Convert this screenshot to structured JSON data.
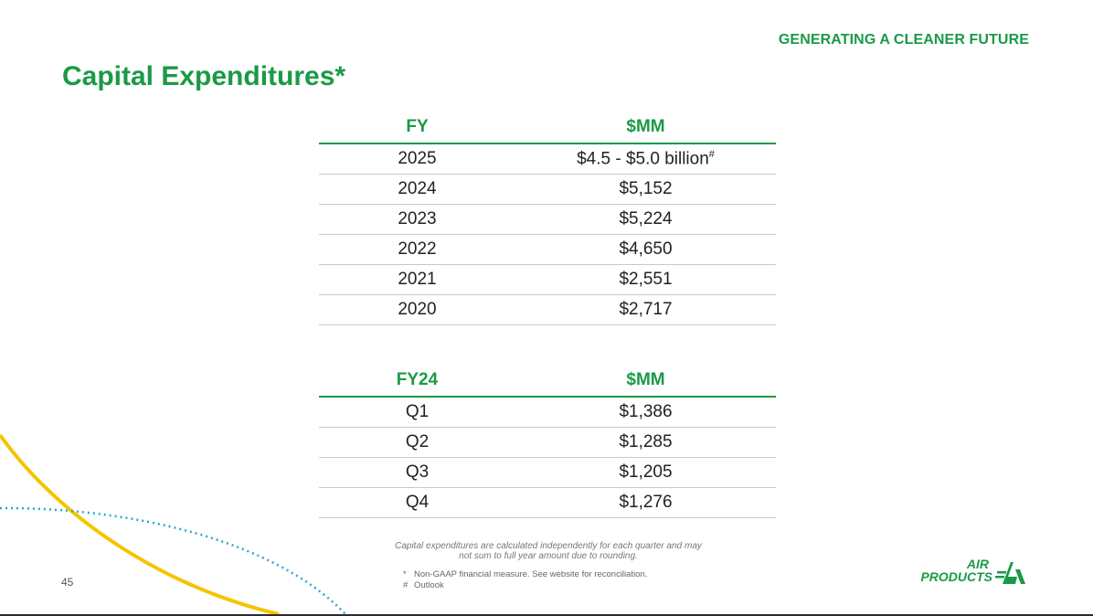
{
  "header": {
    "tagline": "GENERATING A CLEANER FUTURE",
    "title": "Capital Expenditures*"
  },
  "annual_table": {
    "headers": [
      "FY",
      "$MM"
    ],
    "rows": [
      {
        "fy": "2025",
        "value": "$4.5 - $5.0 billion",
        "mark": "#"
      },
      {
        "fy": "2024",
        "value": "$5,152"
      },
      {
        "fy": "2023",
        "value": "$5,224"
      },
      {
        "fy": "2022",
        "value": "$4,650"
      },
      {
        "fy": "2021",
        "value": "$2,551"
      },
      {
        "fy": "2020",
        "value": "$2,717"
      }
    ]
  },
  "quarterly_table": {
    "headers": [
      "FY24",
      "$MM"
    ],
    "rows": [
      {
        "q": "Q1",
        "value": "$1,386"
      },
      {
        "q": "Q2",
        "value": "$1,285"
      },
      {
        "q": "Q3",
        "value": "$1,205"
      },
      {
        "q": "Q4",
        "value": "$1,276"
      }
    ]
  },
  "notes": {
    "rounding_line1": "Capital expenditures are calculated independently for each quarter and may",
    "rounding_line2": "not sum to full year amount due to rounding.",
    "footnotes": [
      {
        "mark": "*",
        "text": "Non-GAAP financial measure. See website for reconciliation."
      },
      {
        "mark": "#",
        "text": "Outlook"
      }
    ]
  },
  "footer": {
    "page_number": "45",
    "logo_line1": "AIR",
    "logo_line2": "PRODUCTS"
  },
  "colors": {
    "brand_green": "#1a9a46",
    "accent_yellow": "#f5c400",
    "accent_blue": "#2aa6d6"
  }
}
